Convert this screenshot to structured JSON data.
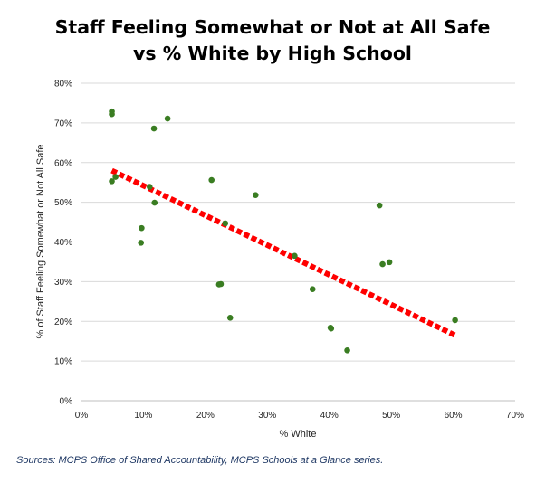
{
  "chart_data": {
    "type": "scatter",
    "title_line1": "Staff Feeling Somewhat or Not at All Safe",
    "title_line2": "vs % White by High School",
    "xlabel": "% White",
    "ylabel": "% of Staff Feeling Somewhat or Not All Safe",
    "xlim": [
      0,
      0.7
    ],
    "ylim": [
      0,
      0.8
    ],
    "x_ticks": [
      0,
      0.1,
      0.2,
      0.3,
      0.4,
      0.5,
      0.6,
      0.7
    ],
    "y_ticks": [
      0,
      0.1,
      0.2,
      0.3,
      0.4,
      0.5,
      0.6,
      0.7,
      0.8
    ],
    "x_tick_labels": [
      "0%",
      "10%",
      "20%",
      "30%",
      "40%",
      "50%",
      "60%",
      "70%"
    ],
    "y_tick_labels": [
      "0%",
      "10%",
      "20%",
      "30%",
      "40%",
      "50%",
      "60%",
      "70%",
      "80%"
    ],
    "grid": "horizontal",
    "legend": "none",
    "point_color": "#3a7d22",
    "trendline_color": "#ff0000",
    "trendline": {
      "type": "linear",
      "x": [
        0.049,
        0.603
      ],
      "y": [
        0.58,
        0.165
      ]
    },
    "points": [
      {
        "x": 0.049,
        "y": 0.729
      },
      {
        "x": 0.049,
        "y": 0.722
      },
      {
        "x": 0.139,
        "y": 0.711
      },
      {
        "x": 0.117,
        "y": 0.686
      },
      {
        "x": 0.049,
        "y": 0.553
      },
      {
        "x": 0.055,
        "y": 0.564
      },
      {
        "x": 0.11,
        "y": 0.539
      },
      {
        "x": 0.21,
        "y": 0.556
      },
      {
        "x": 0.281,
        "y": 0.518
      },
      {
        "x": 0.118,
        "y": 0.499
      },
      {
        "x": 0.481,
        "y": 0.492
      },
      {
        "x": 0.232,
        "y": 0.447
      },
      {
        "x": 0.097,
        "y": 0.435
      },
      {
        "x": 0.096,
        "y": 0.398
      },
      {
        "x": 0.344,
        "y": 0.365
      },
      {
        "x": 0.486,
        "y": 0.344
      },
      {
        "x": 0.497,
        "y": 0.349
      },
      {
        "x": 0.222,
        "y": 0.293
      },
      {
        "x": 0.225,
        "y": 0.294
      },
      {
        "x": 0.373,
        "y": 0.281
      },
      {
        "x": 0.24,
        "y": 0.209
      },
      {
        "x": 0.603,
        "y": 0.203
      },
      {
        "x": 0.402,
        "y": 0.184
      },
      {
        "x": 0.403,
        "y": 0.182
      },
      {
        "x": 0.429,
        "y": 0.127
      }
    ]
  },
  "source_note": "Sources: MCPS Office of Shared Accountability, MCPS Schools at a Glance series."
}
